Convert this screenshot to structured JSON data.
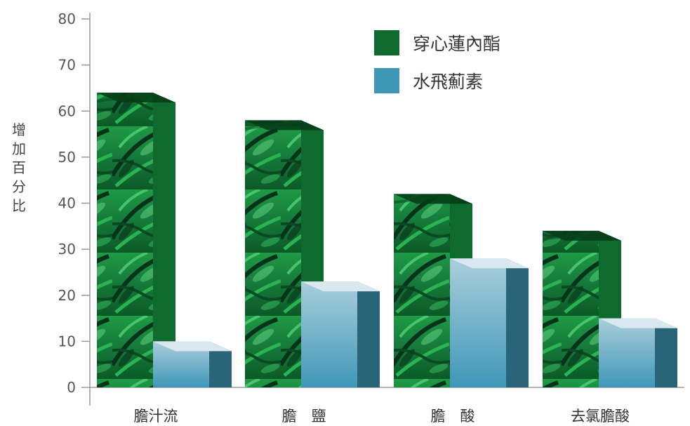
{
  "chart_data": {
    "type": "bar",
    "title": "",
    "xlabel": "",
    "ylabel": "增加百分比",
    "ylim": [
      0,
      80
    ],
    "yticks": [
      0,
      10,
      20,
      30,
      40,
      50,
      60,
      70,
      80
    ],
    "categories": [
      "膽汁流",
      "膽　鹽",
      "膽　酸",
      "去氯膽酸"
    ],
    "series": [
      {
        "name": "穿心蓮內酯",
        "values": [
          64,
          58,
          42,
          34
        ]
      },
      {
        "name": "水飛薊素",
        "values": [
          10,
          23,
          28,
          15
        ]
      }
    ],
    "legend_position": "top-right",
    "grid": false,
    "colors": {
      "series_1": "#1e8a3c",
      "series_1_side": "#0e6a2d",
      "series_1_top": "#063d18",
      "series_2_front_top": "#a8cbd8",
      "series_2_front_bottom": "#3f97b8",
      "series_2_side": "#2a6478",
      "series_2_top": "#d9e7ee",
      "axis": "#999999"
    }
  }
}
